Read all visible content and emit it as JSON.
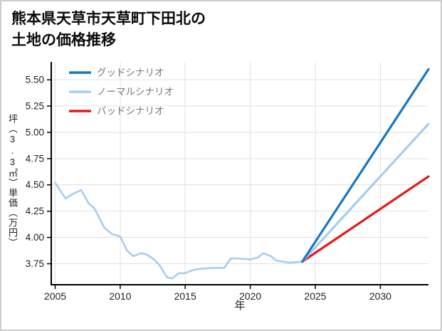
{
  "page": {
    "background": "#ffffff",
    "border_color": "#cccccc"
  },
  "title": {
    "line1": "熊本県天草市天草町下田北の",
    "line2": "土地の価格推移"
  },
  "chart_data": {
    "type": "line",
    "title": "熊本県天草市天草町下田北の土地の価格推移",
    "xlabel": "年",
    "ylabel": "坪（3.3㎡）単価（万円）",
    "xlim": [
      2004.7,
      2033.7
    ],
    "ylim": [
      3.55,
      5.67
    ],
    "x_ticks": [
      2005,
      2010,
      2015,
      2020,
      2025,
      2030
    ],
    "y_ticks": [
      3.75,
      4.0,
      4.25,
      4.5,
      4.75,
      5.0,
      5.25,
      5.5
    ],
    "grid": true,
    "legend_position": "top-left",
    "style": {
      "grid_color": "#e0e0e0",
      "axis_color": "#000000",
      "tick_label_color": "#222222",
      "legend_text_color": "#777777"
    },
    "series": [
      {
        "id": "good-scenario",
        "name": "グッドシナリオ",
        "color": "#1877c0",
        "width": 3.2,
        "in_legend": true,
        "x": [
          2024,
          2033.7
        ],
        "values": [
          3.77,
          5.6
        ]
      },
      {
        "id": "normal-scenario",
        "name": "ノーマルシナリオ",
        "color": "#a8cdf0",
        "width": 3.2,
        "in_legend": true,
        "x": [
          2024,
          2033.7
        ],
        "values": [
          3.77,
          5.08
        ]
      },
      {
        "id": "bad-scenario",
        "name": "バッドシナリオ",
        "color": "#e61919",
        "width": 3.2,
        "in_legend": true,
        "x": [
          2024,
          2033.7
        ],
        "values": [
          3.77,
          4.58
        ]
      },
      {
        "id": "historical",
        "name": "",
        "color": "#a8cdf0",
        "width": 2.6,
        "in_legend": false,
        "x": [
          2005,
          2005.8,
          2006.3,
          2007,
          2007.6,
          2008,
          2008.8,
          2009.4,
          2010,
          2010.5,
          2011,
          2011.6,
          2012,
          2012.5,
          2013,
          2013.6,
          2014,
          2014.5,
          2015,
          2015.6,
          2016,
          2017,
          2018,
          2018.5,
          2019,
          2020,
          2020.6,
          2021,
          2021.6,
          2022,
          2023,
          2024
        ],
        "values": [
          4.52,
          4.37,
          4.41,
          4.45,
          4.32,
          4.28,
          4.09,
          4.03,
          4.01,
          3.88,
          3.82,
          3.85,
          3.84,
          3.8,
          3.74,
          3.62,
          3.61,
          3.66,
          3.66,
          3.69,
          3.7,
          3.71,
          3.71,
          3.8,
          3.8,
          3.79,
          3.81,
          3.85,
          3.82,
          3.78,
          3.76,
          3.77
        ]
      }
    ]
  }
}
